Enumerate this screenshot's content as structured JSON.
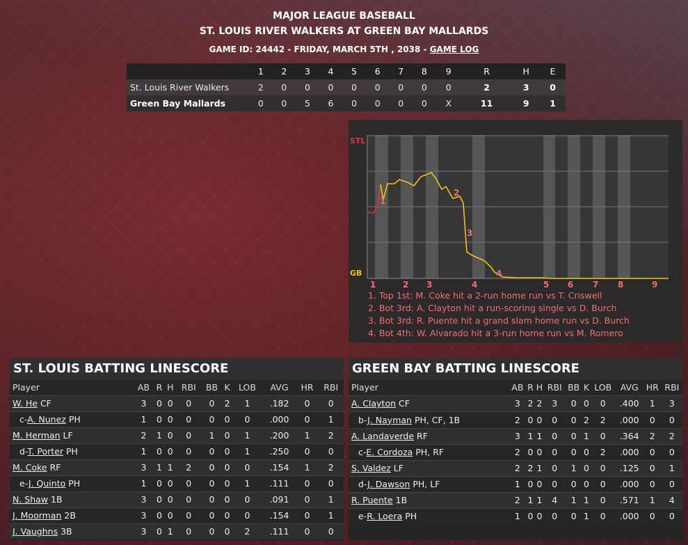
{
  "header": {
    "league": "MAJOR LEAGUE BASEBALL",
    "matchup": "ST. LOUIS RIVER WALKERS AT GREEN BAY MALLARDS",
    "game_info": "GAME ID: 24442 - FRIDAY, MARCH 5TH , 2038 - ",
    "game_log_link": "GAME LOG"
  },
  "linescore": {
    "columns": [
      "",
      "1",
      "2",
      "3",
      "4",
      "5",
      "6",
      "7",
      "8",
      "9",
      "R",
      "H",
      "E"
    ],
    "rows": [
      {
        "team": "St. Louis River Walkers",
        "innings": [
          "2",
          "0",
          "0",
          "0",
          "0",
          "0",
          "0",
          "0",
          "0"
        ],
        "r": "2",
        "h": "3",
        "e": "0"
      },
      {
        "team": "Green Bay Mallards",
        "innings": [
          "0",
          "0",
          "5",
          "6",
          "0",
          "0",
          "0",
          "0",
          "X"
        ],
        "r": "11",
        "h": "9",
        "e": "1"
      }
    ]
  },
  "win_prob": {
    "top_label": "STL",
    "bottom_label": "GB",
    "inning_labels": [
      "1",
      "2",
      "3",
      "4",
      "5",
      "6",
      "7",
      "8",
      "9"
    ],
    "marker_labels": [
      "1",
      "2",
      "3",
      "4"
    ],
    "colors": {
      "away": "#e0304a",
      "home": "#f2c21a",
      "events": "#f07070"
    },
    "events": [
      "1. Top 1st: M. Coke hit a 2-run home run vs T. Criswell",
      "2. Bot 3rd: A. Clayton hit a run-scoring single vs D. Burch",
      "3. Bot 3rd: R. Puente hit a grand slam home run vs D. Burch",
      "4. Bot 4th: W. Alvarado hit a 3-run home run vs M. Romero"
    ]
  },
  "columns": [
    "Player",
    "AB",
    "R",
    "H",
    "RBI",
    "BB",
    "K",
    "LOB",
    "AVG",
    "HR",
    "RBI"
  ],
  "stl": {
    "title": "ST. LOUIS BATTING LINESCORE",
    "rows": [
      {
        "prefix": "",
        "name": "W. He",
        "pos": " CF",
        "sub": false,
        "stats": [
          "3",
          "0",
          "0",
          "0",
          "0",
          "2",
          "1",
          ".182",
          "0",
          "0"
        ]
      },
      {
        "prefix": "c-",
        "name": "A. Nunez",
        "pos": " PH",
        "sub": true,
        "stats": [
          "1",
          "0",
          "0",
          "0",
          "0",
          "0",
          "0",
          ".000",
          "0",
          "1"
        ]
      },
      {
        "prefix": "",
        "name": "M. Herman",
        "pos": " LF",
        "sub": false,
        "stats": [
          "2",
          "1",
          "0",
          "0",
          "1",
          "0",
          "1",
          ".200",
          "1",
          "2"
        ]
      },
      {
        "prefix": "d-",
        "name": "T. Porter",
        "pos": " PH",
        "sub": true,
        "stats": [
          "1",
          "0",
          "0",
          "0",
          "0",
          "0",
          "1",
          ".250",
          "0",
          "0"
        ]
      },
      {
        "prefix": "",
        "name": "M. Coke",
        "pos": " RF",
        "sub": false,
        "stats": [
          "3",
          "1",
          "1",
          "2",
          "0",
          "0",
          "0",
          ".154",
          "1",
          "2"
        ]
      },
      {
        "prefix": "e-",
        "name": "J. Quinto",
        "pos": " PH",
        "sub": true,
        "stats": [
          "1",
          "0",
          "0",
          "0",
          "0",
          "0",
          "1",
          ".111",
          "0",
          "0"
        ]
      },
      {
        "prefix": "",
        "name": "N. Shaw",
        "pos": " 1B",
        "sub": false,
        "stats": [
          "3",
          "0",
          "0",
          "0",
          "0",
          "0",
          "0",
          ".091",
          "0",
          "1"
        ]
      },
      {
        "prefix": "",
        "name": "J. Moorman",
        "pos": " 2B",
        "sub": false,
        "stats": [
          "3",
          "0",
          "0",
          "0",
          "0",
          "0",
          "0",
          ".154",
          "0",
          "1"
        ]
      },
      {
        "prefix": "",
        "name": "J. Vaughns",
        "pos": " 3B",
        "sub": false,
        "stats": [
          "3",
          "0",
          "1",
          "0",
          "0",
          "0",
          "2",
          ".111",
          "0",
          "0"
        ]
      }
    ]
  },
  "gb": {
    "title": "GREEN BAY BATTING LINESCORE",
    "rows": [
      {
        "prefix": "",
        "name": "A. Clayton",
        "pos": " CF",
        "sub": false,
        "stats": [
          "3",
          "2",
          "2",
          "3",
          "0",
          "0",
          "0",
          ".400",
          "1",
          "3"
        ]
      },
      {
        "prefix": "b-",
        "name": "J. Nayman",
        "pos": " PH, CF, 1B",
        "sub": true,
        "tall": true,
        "stats": [
          "2",
          "0",
          "0",
          "0",
          "0",
          "2",
          "2",
          ".000",
          "0",
          "0"
        ]
      },
      {
        "prefix": "",
        "name": "A. Landaverde",
        "pos": " RF",
        "sub": false,
        "stats": [
          "3",
          "1",
          "1",
          "0",
          "0",
          "1",
          "0",
          ".364",
          "2",
          "2"
        ]
      },
      {
        "prefix": "c-",
        "name": "E. Cordoza",
        "pos": " PH, RF",
        "sub": true,
        "stats": [
          "2",
          "0",
          "0",
          "0",
          "0",
          "0",
          "2",
          ".000",
          "0",
          "0"
        ]
      },
      {
        "prefix": "",
        "name": "S. Valdez",
        "pos": " LF",
        "sub": false,
        "stats": [
          "2",
          "2",
          "1",
          "0",
          "1",
          "0",
          "0",
          ".125",
          "0",
          "1"
        ]
      },
      {
        "prefix": "d-",
        "name": "J. Dawson",
        "pos": " PH, LF",
        "sub": true,
        "stats": [
          "1",
          "0",
          "0",
          "0",
          "0",
          "0",
          "0",
          ".000",
          "0",
          "0"
        ]
      },
      {
        "prefix": "",
        "name": "R. Puente",
        "pos": " 1B",
        "sub": false,
        "stats": [
          "2",
          "1",
          "1",
          "4",
          "1",
          "1",
          "0",
          ".571",
          "1",
          "4"
        ]
      },
      {
        "prefix": "e-",
        "name": "R. Loera",
        "pos": " PH",
        "sub": true,
        "stats": [
          "1",
          "0",
          "0",
          "0",
          "0",
          "1",
          "0",
          ".000",
          "0",
          "0"
        ]
      }
    ]
  }
}
